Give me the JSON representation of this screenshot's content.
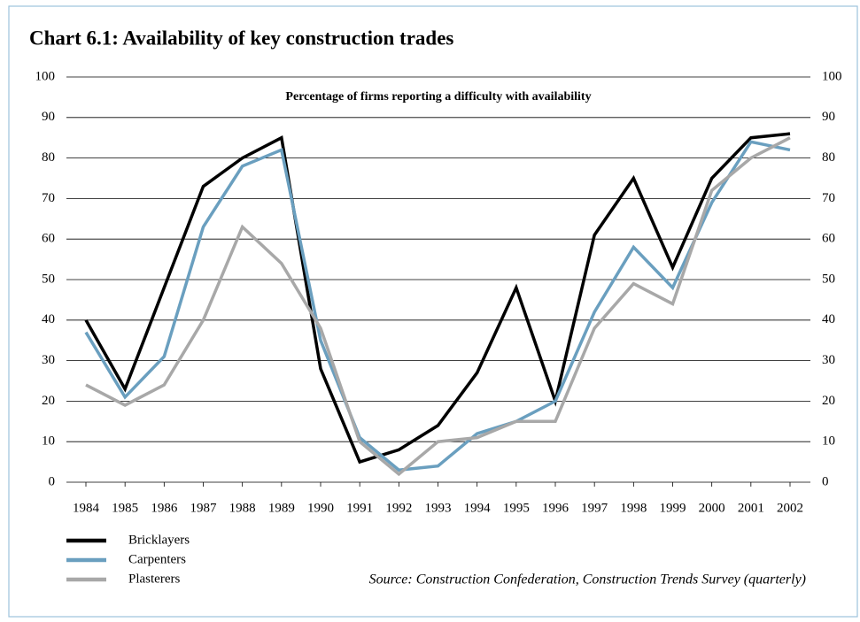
{
  "chart_data": {
    "type": "line",
    "title": "Chart 6.1: Availability of key construction trades",
    "subtitle": "Percentage of firms reporting a difficulty with availability",
    "source": "Source: Construction Confederation, Construction Trends Survey (quarterly)",
    "categories": [
      "1984",
      "1985",
      "1986",
      "1987",
      "1988",
      "1989",
      "1990",
      "1991",
      "1992",
      "1993",
      "1994",
      "1995",
      "1996",
      "1997",
      "1998",
      "1999",
      "2000",
      "2001",
      "2002"
    ],
    "series": [
      {
        "name": "Bricklayers",
        "color": "#000000",
        "values": [
          40,
          23,
          48,
          73,
          80,
          85,
          28,
          5,
          8,
          14,
          27,
          48,
          20,
          61,
          75,
          53,
          75,
          85,
          86
        ]
      },
      {
        "name": "Carpenters",
        "color": "#6a9fbf",
        "values": [
          37,
          21,
          31,
          63,
          78,
          82,
          35,
          11,
          3,
          4,
          12,
          15,
          20,
          42,
          58,
          48,
          69,
          84,
          82
        ]
      },
      {
        "name": "Plasterers",
        "color": "#a8a8a8",
        "values": [
          24,
          19,
          24,
          40,
          63,
          54,
          38,
          10,
          2,
          10,
          11,
          15,
          15,
          38,
          49,
          44,
          72,
          80,
          85
        ]
      }
    ],
    "ylim": [
      0,
      100
    ],
    "yticks": [
      0,
      10,
      20,
      30,
      40,
      50,
      60,
      70,
      80,
      90,
      100
    ],
    "grid": true,
    "legend": "bottom-left"
  }
}
